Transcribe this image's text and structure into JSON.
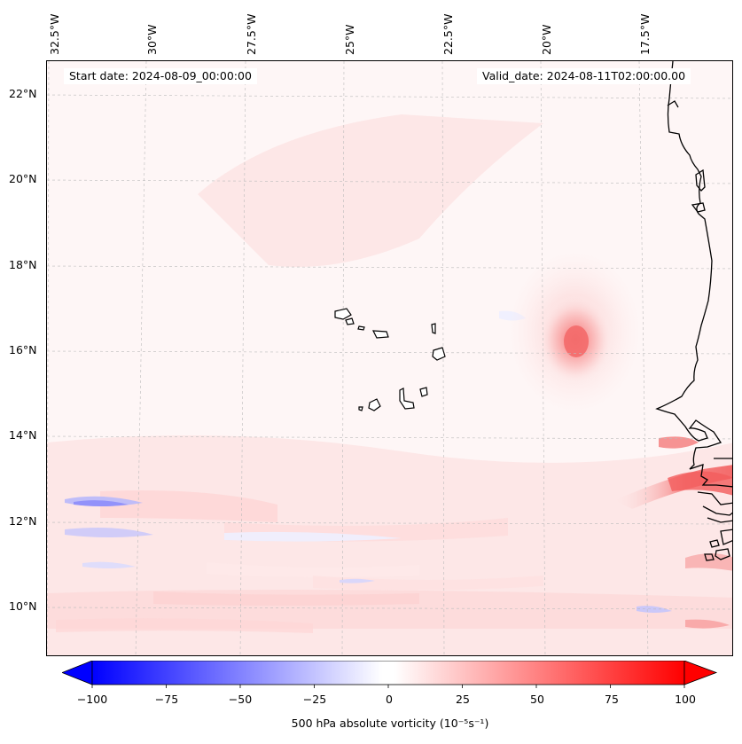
{
  "header": {
    "start_date": "Start date: 2024-08-09_00:00:00",
    "valid_date": "Valid_date: 2024-08-11T02:00:00.00"
  },
  "axes": {
    "longitude_labels": [
      "32.5°W",
      "30°W",
      "27.5°W",
      "25°W",
      "22.5°W",
      "20°W",
      "17.5°W"
    ],
    "latitude_labels": [
      "22°N",
      "20°N",
      "18°N",
      "16°N",
      "14°N",
      "12°N",
      "10°N"
    ]
  },
  "field": {
    "name": "500 hPa absolute vorticity",
    "units": "10^-5 s^-1",
    "vortex_center": {
      "lon": -19.3,
      "lat": 16.3,
      "peak_value": 55
    },
    "features": [
      "cyclonic vortex west of Senegal coast",
      "Cape Verde islands",
      "West African coastline"
    ]
  },
  "colorbar": {
    "min": -100,
    "max": 100,
    "ticks": [
      "−100",
      "−75",
      "−50",
      "−25",
      "0",
      "25",
      "50",
      "75",
      "100"
    ],
    "label": "500 hPa absolute vorticity (10⁻⁵s⁻¹)",
    "colors": {
      "negative": "#0000ff",
      "zero": "#ffffff",
      "positive": "#ff0000"
    }
  }
}
